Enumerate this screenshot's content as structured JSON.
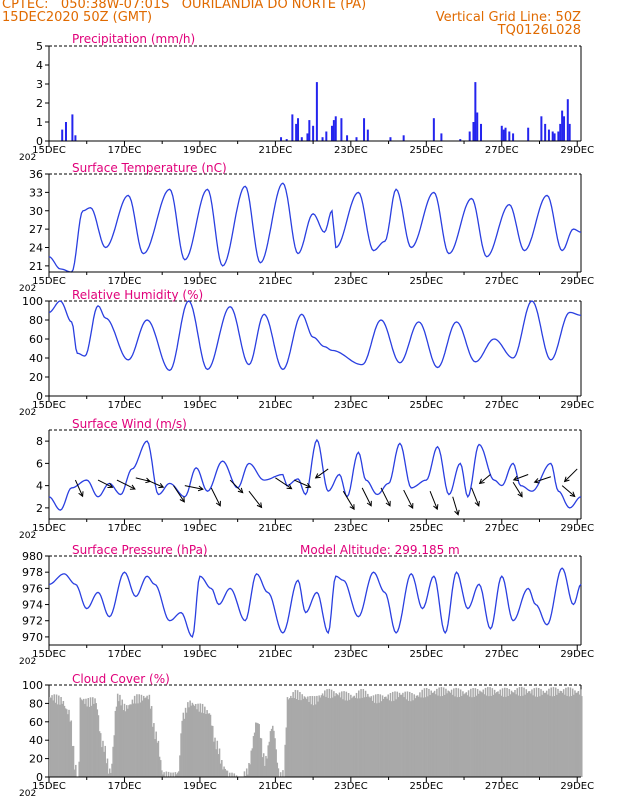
{
  "colors": {
    "header": "#e06a00",
    "title": "#e0007a",
    "line": "#2a3fe0",
    "bar": "#2424ee",
    "cloud": "#a9a9a9",
    "arrow": "#000000"
  },
  "header": {
    "line1": "CPTEC:   050:38W-07:01S   OURILANDIA DO NORTE (PA)",
    "line2": "15DEC2020 50Z (GMT)",
    "vgrid": "Vertical Grid Line: 50Z",
    "code": "TQ0126L028"
  },
  "x_tick_labels": [
    "15DEC",
    "17DEC",
    "19DEC",
    "21DEC",
    "23DEC",
    "25DEC",
    "27DEC",
    "29DEC"
  ],
  "x_year_label": "202",
  "chart_data": [
    {
      "type": "bar",
      "title": "Precipitation (mm/h)",
      "ylim": [
        0,
        5
      ],
      "yticks": [
        0,
        1,
        2,
        3,
        4,
        5
      ],
      "x_unit": "days since 15DEC",
      "bars": [
        [
          0.35,
          0.6
        ],
        [
          0.45,
          1.0
        ],
        [
          0.62,
          1.4
        ],
        [
          0.7,
          0.3
        ],
        [
          6.15,
          0.2
        ],
        [
          6.3,
          0.1
        ],
        [
          6.45,
          1.4
        ],
        [
          6.55,
          0.9
        ],
        [
          6.6,
          1.2
        ],
        [
          6.7,
          0.2
        ],
        [
          6.85,
          0.4
        ],
        [
          6.9,
          1.1
        ],
        [
          7.0,
          0.8
        ],
        [
          7.1,
          3.1
        ],
        [
          7.25,
          0.2
        ],
        [
          7.35,
          0.5
        ],
        [
          7.5,
          0.8
        ],
        [
          7.55,
          1.1
        ],
        [
          7.6,
          1.3
        ],
        [
          7.75,
          1.2
        ],
        [
          7.9,
          0.3
        ],
        [
          8.15,
          0.2
        ],
        [
          8.35,
          1.2
        ],
        [
          8.45,
          0.6
        ],
        [
          9.05,
          0.2
        ],
        [
          9.4,
          0.3
        ],
        [
          10.2,
          1.2
        ],
        [
          10.4,
          0.4
        ],
        [
          10.9,
          0.1
        ],
        [
          11.15,
          0.5
        ],
        [
          11.25,
          1.0
        ],
        [
          11.3,
          3.1
        ],
        [
          11.35,
          1.5
        ],
        [
          11.45,
          0.9
        ],
        [
          12.0,
          0.8
        ],
        [
          12.05,
          0.6
        ],
        [
          12.1,
          0.7
        ],
        [
          12.2,
          0.5
        ],
        [
          12.3,
          0.4
        ],
        [
          12.7,
          0.7
        ],
        [
          13.05,
          1.3
        ],
        [
          13.15,
          0.9
        ],
        [
          13.25,
          0.6
        ],
        [
          13.35,
          0.5
        ],
        [
          13.4,
          0.4
        ],
        [
          13.5,
          0.5
        ],
        [
          13.55,
          0.9
        ],
        [
          13.6,
          1.6
        ],
        [
          13.65,
          1.3
        ],
        [
          13.75,
          2.2
        ],
        [
          13.8,
          0.9
        ]
      ]
    },
    {
      "type": "line",
      "title": "Surface Temperature (nC)",
      "ylim": [
        20,
        36
      ],
      "yticks": [
        21,
        24,
        27,
        30,
        33,
        36
      ],
      "extrema": [
        [
          0,
          22.5
        ],
        [
          0.3,
          20.5
        ],
        [
          0.6,
          20.0
        ],
        [
          0.9,
          30.0
        ],
        [
          1.1,
          30.5
        ],
        [
          1.5,
          24.0
        ],
        [
          2.1,
          32.5
        ],
        [
          2.5,
          23.0
        ],
        [
          3.2,
          33.5
        ],
        [
          3.6,
          22.0
        ],
        [
          4.2,
          33.5
        ],
        [
          4.6,
          21.0
        ],
        [
          5.2,
          34.0
        ],
        [
          5.6,
          21.5
        ],
        [
          6.2,
          34.5
        ],
        [
          6.6,
          23.0
        ],
        [
          7.0,
          29.5
        ],
        [
          7.3,
          26.5
        ],
        [
          7.5,
          30.0
        ],
        [
          7.6,
          24.0
        ],
        [
          8.2,
          33.0
        ],
        [
          8.6,
          23.5
        ],
        [
          8.9,
          25.0
        ],
        [
          9.2,
          33.5
        ],
        [
          9.6,
          24.0
        ],
        [
          10.2,
          33.0
        ],
        [
          10.6,
          23.0
        ],
        [
          11.2,
          32.0
        ],
        [
          11.6,
          22.5
        ],
        [
          12.2,
          31.0
        ],
        [
          12.6,
          23.5
        ],
        [
          13.2,
          32.5
        ],
        [
          13.6,
          23.5
        ],
        [
          13.9,
          27.0
        ],
        [
          14.1,
          26.5
        ]
      ]
    },
    {
      "type": "line",
      "title": "Relative Humidity (%)",
      "ylim": [
        0,
        100
      ],
      "yticks": [
        0,
        20,
        40,
        60,
        80,
        100
      ],
      "extrema": [
        [
          0,
          88
        ],
        [
          0.3,
          100
        ],
        [
          0.6,
          78
        ],
        [
          0.75,
          45
        ],
        [
          0.95,
          42
        ],
        [
          1.3,
          95
        ],
        [
          1.5,
          82
        ],
        [
          2.1,
          38
        ],
        [
          2.6,
          80
        ],
        [
          3.2,
          27
        ],
        [
          3.7,
          100
        ],
        [
          4.2,
          28
        ],
        [
          4.8,
          94
        ],
        [
          5.3,
          33
        ],
        [
          5.7,
          86
        ],
        [
          6.2,
          28
        ],
        [
          6.7,
          86
        ],
        [
          7.0,
          62
        ],
        [
          7.3,
          52
        ],
        [
          7.5,
          48
        ],
        [
          8.3,
          33
        ],
        [
          8.8,
          80
        ],
        [
          9.3,
          35
        ],
        [
          9.8,
          78
        ],
        [
          10.3,
          30
        ],
        [
          10.8,
          78
        ],
        [
          11.3,
          36
        ],
        [
          11.8,
          60
        ],
        [
          12.3,
          40
        ],
        [
          12.8,
          100
        ],
        [
          13.3,
          38
        ],
        [
          13.8,
          88
        ],
        [
          14.1,
          85
        ]
      ]
    },
    {
      "type": "line",
      "title": "Surface Wind (m/s)",
      "ylim": [
        1,
        9
      ],
      "yticks": [
        2,
        4,
        6,
        8
      ],
      "extrema": [
        [
          0,
          3.0
        ],
        [
          0.3,
          1.8
        ],
        [
          0.6,
          3.8
        ],
        [
          1.0,
          4.5
        ],
        [
          1.3,
          3.0
        ],
        [
          1.6,
          4.2
        ],
        [
          1.9,
          3.2
        ],
        [
          2.2,
          5.5
        ],
        [
          2.6,
          8.0
        ],
        [
          2.9,
          3.2
        ],
        [
          3.2,
          4.2
        ],
        [
          3.6,
          3.0
        ],
        [
          3.9,
          5.6
        ],
        [
          4.2,
          3.5
        ],
        [
          4.6,
          6.2
        ],
        [
          5.0,
          3.8
        ],
        [
          5.3,
          6.0
        ],
        [
          5.7,
          4.5
        ],
        [
          6.2,
          5.0
        ],
        [
          6.3,
          4.0
        ],
        [
          6.6,
          4.6
        ],
        [
          6.8,
          3.2
        ],
        [
          7.1,
          8.1
        ],
        [
          7.4,
          3.5
        ],
        [
          7.7,
          5.0
        ],
        [
          7.9,
          3.0
        ],
        [
          8.2,
          7.0
        ],
        [
          8.4,
          4.5
        ],
        [
          8.7,
          3.2
        ],
        [
          9.0,
          4.2
        ],
        [
          9.3,
          7.8
        ],
        [
          9.6,
          3.8
        ],
        [
          10.0,
          4.5
        ],
        [
          10.3,
          7.5
        ],
        [
          10.6,
          3.2
        ],
        [
          10.9,
          6.0
        ],
        [
          11.1,
          3.0
        ],
        [
          11.4,
          7.7
        ],
        [
          11.8,
          4.5
        ],
        [
          12.0,
          4.0
        ],
        [
          12.3,
          6.0
        ],
        [
          12.5,
          4.0
        ],
        [
          12.8,
          3.5
        ],
        [
          13.3,
          6.0
        ],
        [
          13.5,
          3.5
        ],
        [
          13.8,
          2.0
        ],
        [
          14.1,
          3.0
        ]
      ],
      "barbs": [
        [
          0.7,
          4.5,
          0.4,
          -0.9
        ],
        [
          1.3,
          4.5,
          0.8,
          -0.4
        ],
        [
          1.8,
          4.5,
          1.0,
          -0.5
        ],
        [
          2.3,
          4.7,
          0.8,
          -0.2
        ],
        [
          2.6,
          4.5,
          0.9,
          -0.4
        ],
        [
          3.3,
          4.0,
          0.6,
          -0.9
        ],
        [
          3.6,
          4.0,
          1.0,
          -0.2
        ],
        [
          4.3,
          3.8,
          0.5,
          -1.0
        ],
        [
          4.8,
          4.5,
          0.7,
          -0.7
        ],
        [
          5.3,
          3.5,
          0.7,
          -0.9
        ],
        [
          6.0,
          4.7,
          0.9,
          -0.6
        ],
        [
          6.5,
          4.5,
          0.9,
          -0.4
        ],
        [
          7.4,
          5.5,
          -0.7,
          -0.5
        ],
        [
          7.8,
          3.5,
          0.6,
          -1.0
        ],
        [
          8.3,
          3.8,
          0.5,
          -1.0
        ],
        [
          8.8,
          3.8,
          0.5,
          -1.0
        ],
        [
          9.4,
          3.6,
          0.5,
          -1.0
        ],
        [
          10.1,
          3.5,
          0.4,
          -1.0
        ],
        [
          10.7,
          3.0,
          0.3,
          -1.0
        ],
        [
          11.2,
          3.8,
          0.4,
          -1.0
        ],
        [
          11.7,
          5.0,
          -0.6,
          -0.5
        ],
        [
          12.3,
          4.3,
          0.5,
          -0.8
        ],
        [
          12.7,
          5.0,
          -0.8,
          -0.3
        ],
        [
          13.3,
          4.8,
          -0.9,
          -0.3
        ],
        [
          13.6,
          4.0,
          0.7,
          -0.6
        ],
        [
          14.0,
          5.5,
          -0.7,
          -0.7
        ]
      ]
    },
    {
      "type": "line",
      "title": "Surface Pressure (hPa)",
      "annotation": "Model Altitude: 299.185 m",
      "ylim": [
        969,
        980
      ],
      "yticks": [
        970,
        972,
        974,
        976,
        978,
        980
      ],
      "extrema": [
        [
          0,
          976.5
        ],
        [
          0.4,
          977.8
        ],
        [
          0.7,
          976.5
        ],
        [
          1.0,
          973.5
        ],
        [
          1.3,
          975.5
        ],
        [
          1.6,
          972.5
        ],
        [
          2.0,
          978
        ],
        [
          2.3,
          975
        ],
        [
          2.6,
          977.5
        ],
        [
          2.8,
          976.5
        ],
        [
          3.2,
          972
        ],
        [
          3.5,
          973
        ],
        [
          3.8,
          970
        ],
        [
          4.0,
          977.5
        ],
        [
          4.3,
          976
        ],
        [
          4.5,
          974
        ],
        [
          4.8,
          976
        ],
        [
          5.2,
          972
        ],
        [
          5.5,
          977.8
        ],
        [
          5.8,
          975.5
        ],
        [
          6.2,
          970.5
        ],
        [
          6.6,
          977
        ],
        [
          6.8,
          973
        ],
        [
          7.1,
          975.5
        ],
        [
          7.4,
          970.5
        ],
        [
          7.6,
          977.5
        ],
        [
          7.8,
          977
        ],
        [
          8.2,
          972.5
        ],
        [
          8.6,
          978
        ],
        [
          8.9,
          975.5
        ],
        [
          9.2,
          970.5
        ],
        [
          9.6,
          977.8
        ],
        [
          9.9,
          973.5
        ],
        [
          10.2,
          977.5
        ],
        [
          10.5,
          970.5
        ],
        [
          10.8,
          978
        ],
        [
          11.1,
          973.5
        ],
        [
          11.4,
          976.5
        ],
        [
          11.7,
          971
        ],
        [
          12.0,
          977.5
        ],
        [
          12.3,
          972
        ],
        [
          12.7,
          976
        ],
        [
          12.9,
          974
        ],
        [
          13.2,
          971.5
        ],
        [
          13.6,
          978.5
        ],
        [
          13.9,
          974
        ],
        [
          14.1,
          976.5
        ]
      ]
    },
    {
      "type": "area",
      "title": "Cloud Cover (%)",
      "ylim": [
        0,
        100
      ],
      "yticks": [
        0,
        20,
        40,
        60,
        80,
        100
      ],
      "extrema": [
        [
          0,
          92
        ],
        [
          0.3,
          88
        ],
        [
          0.5,
          75
        ],
        [
          0.7,
          12
        ],
        [
          0.75,
          2
        ],
        [
          0.8,
          90
        ],
        [
          1.0,
          86
        ],
        [
          1.2,
          88
        ],
        [
          1.4,
          40
        ],
        [
          1.6,
          10
        ],
        [
          1.8,
          92
        ],
        [
          2.0,
          80
        ],
        [
          2.3,
          90
        ],
        [
          2.6,
          92
        ],
        [
          2.8,
          50
        ],
        [
          3.0,
          8
        ],
        [
          3.2,
          5
        ],
        [
          3.4,
          10
        ],
        [
          3.5,
          70
        ],
        [
          3.7,
          85
        ],
        [
          4.0,
          80
        ],
        [
          4.2,
          75
        ],
        [
          4.4,
          40
        ],
        [
          4.6,
          15
        ],
        [
          4.8,
          5
        ],
        [
          5.0,
          2
        ],
        [
          5.2,
          10
        ],
        [
          5.5,
          65
        ],
        [
          5.7,
          22
        ],
        [
          5.9,
          60
        ],
        [
          6.1,
          5
        ],
        [
          6.2,
          8
        ],
        [
          6.3,
          90
        ],
        [
          6.5,
          95
        ],
        [
          6.7,
          92
        ],
        [
          7.0,
          88
        ],
        [
          7.3,
          96
        ],
        [
          7.6,
          95
        ],
        [
          8.0,
          92
        ],
        [
          8.3,
          96
        ],
        [
          8.6,
          90
        ],
        [
          9.0,
          92
        ],
        [
          9.3,
          95
        ],
        [
          9.6,
          92
        ],
        [
          10.0,
          97
        ],
        [
          10.5,
          98
        ],
        [
          11.0,
          96
        ],
        [
          11.5,
          98
        ],
        [
          12.0,
          97
        ],
        [
          12.5,
          98
        ],
        [
          13.0,
          97
        ],
        [
          13.5,
          98
        ],
        [
          14.1,
          97
        ]
      ]
    }
  ]
}
